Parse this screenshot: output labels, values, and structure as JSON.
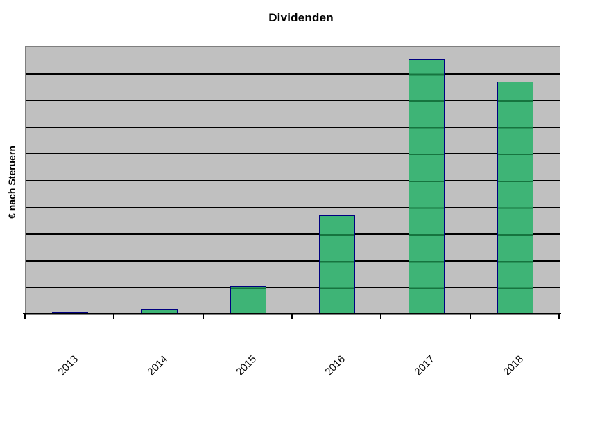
{
  "page": {
    "background": "#FFFFFF"
  },
  "chart_data": {
    "type": "bar",
    "title": "Dividenden",
    "ylabel": "€ nach Steruern",
    "xlabel": "",
    "categories": [
      "2013",
      "2014",
      "2015",
      "2016",
      "2017",
      "2018"
    ],
    "values": [
      0.05,
      0.2,
      1.05,
      3.7,
      9.55,
      8.7
    ],
    "ylim": [
      0,
      10
    ],
    "gridline_interval": 1,
    "grid": "horizontal",
    "y_tick_labels": "none shown",
    "x_tick_label_rotation_deg": 45,
    "legend": "none",
    "units_note": "y-axis has no numeric tick labels; values expressed in relative gridline units (plot spans 10 horizontal gridline intervals)"
  },
  "colors": {
    "bar_fill": "#3EB476",
    "bar_fill_gridline_overlap": "#16743F",
    "bar_border": "#000080",
    "plot_background": "#C0C0C0",
    "plot_border": "#7F7F7F",
    "gridline": "#000000",
    "axis_line": "#000000",
    "text": "#000000"
  }
}
